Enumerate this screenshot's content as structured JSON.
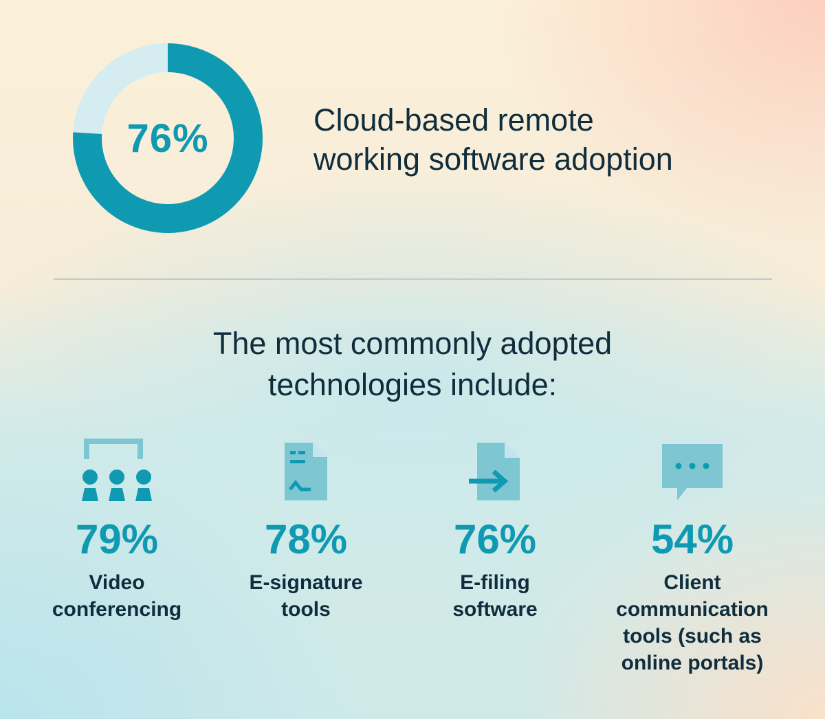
{
  "colors": {
    "accent": "#0f9ab2",
    "icon_fill": "#7fc6d3",
    "donut_track": "#d5edf1",
    "text": "#0f2d3d"
  },
  "chart_data": [
    {
      "type": "pie",
      "subtype": "donut",
      "values": [
        76,
        24
      ],
      "center_label": "76%",
      "title": "Cloud-based remote working software adoption"
    },
    {
      "type": "table",
      "title": "The most commonly adopted technologies include:",
      "categories": [
        "Video conferencing",
        "E-signature tools",
        "E-filing software",
        "Client communication tools (such as online portals)"
      ],
      "values": [
        79,
        78,
        76,
        54
      ]
    }
  ],
  "headline": {
    "line1": "Cloud-based remote",
    "line2": "working software adoption"
  },
  "donut": {
    "percent": 76,
    "label": "76%"
  },
  "subhead": {
    "line1": "The most commonly adopted",
    "line2": "technologies include:"
  },
  "stats": [
    {
      "icon": "video-conference-icon",
      "value": "79%",
      "label": [
        "Video",
        "conferencing"
      ]
    },
    {
      "icon": "e-signature-icon",
      "value": "78%",
      "label": [
        "E-signature",
        "tools"
      ]
    },
    {
      "icon": "e-filing-icon",
      "value": "76%",
      "label": [
        "E-filing",
        "software"
      ]
    },
    {
      "icon": "chat-bubble-icon",
      "value": "54%",
      "label": [
        "Client",
        "communication",
        "tools (such as",
        "online portals)"
      ]
    }
  ]
}
